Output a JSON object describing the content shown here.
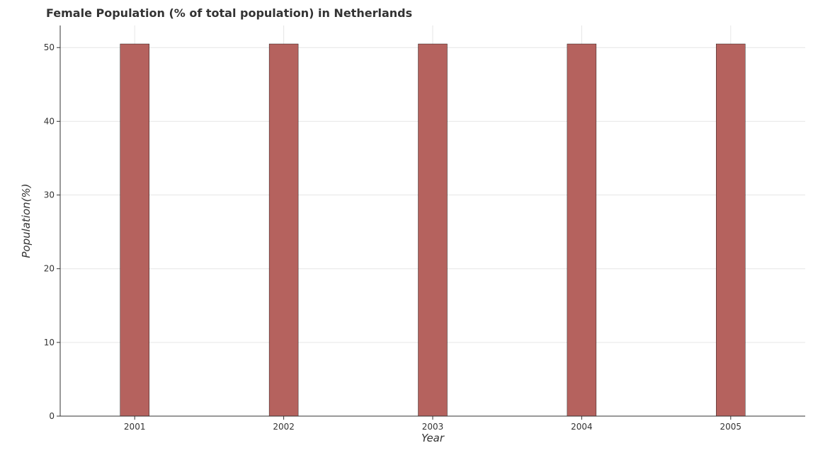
{
  "chart_data": {
    "type": "bar",
    "title": "Female Population (% of total population) in Netherlands",
    "xlabel": "Year",
    "ylabel": "Population(%)",
    "categories": [
      "2001",
      "2002",
      "2003",
      "2004",
      "2005"
    ],
    "values": [
      50.5,
      50.5,
      50.5,
      50.5,
      50.5
    ],
    "ylim": [
      0,
      53
    ],
    "yticks": [
      0,
      10,
      20,
      30,
      40,
      50
    ],
    "grid": true,
    "bar_color": "#b5625e"
  }
}
